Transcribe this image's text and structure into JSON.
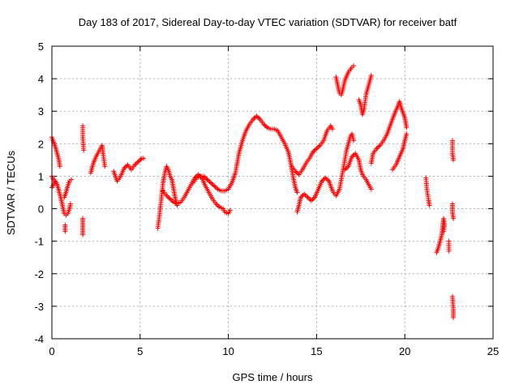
{
  "chart_data": {
    "type": "scatter",
    "title": "Day 183 of 2017, Sidereal Day-to-day VTEC variation (SDTVAR) for receiver batf",
    "xlabel": "GPS time / hours",
    "ylabel": "SDTVAR / TECUs",
    "xlim": [
      0,
      25
    ],
    "ylim": [
      -4,
      5
    ],
    "xticks": [
      "0",
      "5",
      "10",
      "15",
      "20",
      "25"
    ],
    "yticks": [
      "-4",
      "-3",
      "-2",
      "-1",
      "0",
      "1",
      "2",
      "3",
      "4",
      "5"
    ],
    "grid": true,
    "marker": "+",
    "series": [
      {
        "name": "SDTVAR",
        "color": "#ff0000",
        "segments": [
          [
            [
              0.0,
              2.2
            ],
            [
              0.1,
              2.05
            ],
            [
              0.2,
              1.9
            ],
            [
              0.3,
              1.7
            ],
            [
              0.4,
              1.5
            ],
            [
              0.45,
              1.3
            ]
          ],
          [
            [
              0.0,
              1.0
            ],
            [
              0.1,
              0.9
            ],
            [
              0.2,
              0.8
            ],
            [
              0.3,
              0.75
            ],
            [
              0.4,
              0.55
            ],
            [
              0.5,
              0.35
            ],
            [
              0.6,
              0.1
            ],
            [
              0.7,
              -0.15
            ],
            [
              0.8,
              -0.2
            ],
            [
              0.9,
              -0.15
            ],
            [
              1.0,
              0.0
            ],
            [
              1.05,
              0.15
            ]
          ],
          [
            [
              0.0,
              0.65
            ],
            [
              0.1,
              0.75
            ],
            [
              0.2,
              0.85
            ],
            [
              0.3,
              0.75
            ]
          ],
          [
            [
              0.7,
              0.35
            ],
            [
              0.8,
              0.5
            ],
            [
              0.9,
              0.7
            ],
            [
              1.0,
              0.85
            ],
            [
              1.1,
              0.9
            ]
          ],
          [
            [
              0.75,
              -0.5
            ],
            [
              0.75,
              -0.7
            ]
          ],
          [
            [
              1.75,
              2.55
            ],
            [
              1.75,
              2.2
            ],
            [
              1.8,
              1.8
            ]
          ],
          [
            [
              1.75,
              -0.3
            ],
            [
              1.75,
              -0.55
            ],
            [
              1.75,
              -0.8
            ]
          ],
          [
            [
              2.2,
              1.1
            ],
            [
              2.35,
              1.4
            ],
            [
              2.5,
              1.6
            ],
            [
              2.7,
              1.8
            ],
            [
              2.85,
              1.95
            ],
            [
              2.9,
              1.7
            ],
            [
              3.0,
              1.3
            ]
          ],
          [
            [
              3.5,
              1.15
            ],
            [
              3.6,
              1.0
            ],
            [
              3.7,
              0.85
            ],
            [
              3.9,
              1.0
            ],
            [
              4.1,
              1.25
            ],
            [
              4.3,
              1.35
            ],
            [
              4.5,
              1.2
            ],
            [
              4.7,
              1.35
            ],
            [
              4.9,
              1.45
            ],
            [
              5.1,
              1.55
            ],
            [
              5.2,
              1.55
            ]
          ],
          [
            [
              6.0,
              -0.6
            ],
            [
              6.1,
              -0.2
            ],
            [
              6.2,
              0.3
            ],
            [
              6.3,
              0.8
            ],
            [
              6.4,
              1.1
            ],
            [
              6.5,
              1.3
            ],
            [
              6.6,
              1.2
            ],
            [
              6.7,
              1.0
            ],
            [
              6.8,
              0.9
            ],
            [
              6.9,
              0.6
            ],
            [
              7.0,
              0.3
            ],
            [
              7.1,
              0.1
            ]
          ],
          [
            [
              6.3,
              0.55
            ],
            [
              6.5,
              0.4
            ],
            [
              6.7,
              0.3
            ],
            [
              6.9,
              0.2
            ],
            [
              7.1,
              0.15
            ],
            [
              7.3,
              0.2
            ],
            [
              7.5,
              0.35
            ],
            [
              7.7,
              0.55
            ],
            [
              7.9,
              0.75
            ],
            [
              8.1,
              0.95
            ],
            [
              8.3,
              1.05
            ],
            [
              8.5,
              0.95
            ],
            [
              8.7,
              0.7
            ],
            [
              8.9,
              0.5
            ],
            [
              9.1,
              0.3
            ],
            [
              9.3,
              0.15
            ],
            [
              9.5,
              0.05
            ],
            [
              9.7,
              0.0
            ],
            [
              9.8,
              -0.1
            ],
            [
              10.0,
              -0.15
            ],
            [
              10.1,
              -0.05
            ]
          ],
          [
            [
              8.0,
              0.8
            ],
            [
              8.2,
              0.95
            ],
            [
              8.4,
              1.0
            ],
            [
              8.6,
              1.0
            ],
            [
              8.8,
              0.9
            ],
            [
              9.0,
              0.8
            ],
            [
              9.2,
              0.7
            ],
            [
              9.4,
              0.6
            ],
            [
              9.6,
              0.55
            ],
            [
              9.8,
              0.55
            ],
            [
              10.0,
              0.6
            ],
            [
              10.2,
              0.8
            ],
            [
              10.4,
              1.1
            ],
            [
              10.6,
              1.7
            ],
            [
              10.8,
              2.1
            ],
            [
              11.0,
              2.4
            ],
            [
              11.2,
              2.6
            ],
            [
              11.4,
              2.75
            ],
            [
              11.6,
              2.85
            ],
            [
              11.8,
              2.75
            ],
            [
              12.0,
              2.6
            ],
            [
              12.2,
              2.5
            ],
            [
              12.4,
              2.45
            ],
            [
              12.6,
              2.45
            ],
            [
              12.8,
              2.4
            ],
            [
              13.0,
              2.2
            ],
            [
              13.2,
              2.0
            ],
            [
              13.4,
              1.75
            ],
            [
              13.5,
              1.5
            ],
            [
              13.6,
              1.2
            ],
            [
              13.7,
              0.9
            ],
            [
              13.8,
              0.65
            ],
            [
              13.9,
              0.5
            ]
          ],
          [
            [
              13.9,
              -0.1
            ],
            [
              14.0,
              0.1
            ],
            [
              14.1,
              0.35
            ],
            [
              14.3,
              0.45
            ],
            [
              14.5,
              0.35
            ],
            [
              14.7,
              0.25
            ],
            [
              14.9,
              0.35
            ],
            [
              15.1,
              0.6
            ],
            [
              15.3,
              0.85
            ],
            [
              15.5,
              0.95
            ],
            [
              15.7,
              0.85
            ],
            [
              15.9,
              0.55
            ],
            [
              16.1,
              0.4
            ],
            [
              16.3,
              0.6
            ],
            [
              16.5,
              1.2
            ],
            [
              16.7,
              1.8
            ],
            [
              16.9,
              2.2
            ],
            [
              17.0,
              2.3
            ],
            [
              17.1,
              2.1
            ]
          ],
          [
            [
              13.6,
              1.3
            ],
            [
              13.8,
              1.15
            ],
            [
              14.0,
              1.05
            ],
            [
              14.2,
              1.2
            ],
            [
              14.4,
              1.4
            ],
            [
              14.6,
              1.55
            ],
            [
              14.8,
              1.75
            ],
            [
              15.0,
              1.85
            ],
            [
              15.2,
              1.95
            ],
            [
              15.4,
              2.1
            ],
            [
              15.6,
              2.4
            ],
            [
              15.8,
              2.55
            ],
            [
              15.9,
              2.45
            ]
          ],
          [
            [
              16.1,
              4.05
            ],
            [
              16.2,
              3.8
            ],
            [
              16.3,
              3.55
            ],
            [
              16.4,
              3.5
            ],
            [
              16.5,
              3.7
            ],
            [
              16.6,
              3.95
            ],
            [
              16.8,
              4.2
            ],
            [
              17.0,
              4.35
            ],
            [
              17.1,
              4.4
            ]
          ],
          [
            [
              16.6,
              1.2
            ],
            [
              16.8,
              1.3
            ],
            [
              17.0,
              1.6
            ],
            [
              17.2,
              1.7
            ],
            [
              17.4,
              1.5
            ],
            [
              17.5,
              1.2
            ],
            [
              17.6,
              1.05
            ],
            [
              17.8,
              0.9
            ],
            [
              18.0,
              0.7
            ],
            [
              18.1,
              0.6
            ]
          ],
          [
            [
              17.4,
              3.35
            ],
            [
              17.5,
              3.2
            ],
            [
              17.6,
              2.9
            ],
            [
              17.7,
              3.1
            ],
            [
              17.8,
              3.5
            ],
            [
              18.0,
              3.9
            ],
            [
              18.1,
              4.1
            ]
          ],
          [
            [
              18.1,
              1.4
            ],
            [
              18.2,
              1.7
            ],
            [
              18.4,
              1.85
            ],
            [
              18.6,
              1.95
            ],
            [
              18.8,
              2.1
            ],
            [
              19.0,
              2.3
            ],
            [
              19.2,
              2.6
            ],
            [
              19.4,
              2.9
            ],
            [
              19.6,
              3.15
            ],
            [
              19.7,
              3.3
            ],
            [
              19.8,
              3.1
            ],
            [
              20.0,
              2.8
            ],
            [
              20.1,
              2.5
            ]
          ],
          [
            [
              19.3,
              1.2
            ],
            [
              19.5,
              1.35
            ],
            [
              19.7,
              1.6
            ],
            [
              19.9,
              1.85
            ],
            [
              20.0,
              2.1
            ],
            [
              20.1,
              2.3
            ]
          ],
          [
            [
              21.2,
              0.95
            ],
            [
              21.25,
              0.6
            ],
            [
              21.35,
              0.25
            ],
            [
              21.4,
              0.1
            ]
          ],
          [
            [
              21.8,
              -1.35
            ],
            [
              21.9,
              -1.2
            ],
            [
              22.0,
              -1.0
            ],
            [
              22.1,
              -0.8
            ],
            [
              22.15,
              -0.55
            ],
            [
              22.2,
              -0.3
            ],
            [
              22.25,
              -0.5
            ],
            [
              22.2,
              -0.7
            ]
          ],
          [
            [
              22.5,
              -1.0
            ],
            [
              22.5,
              -1.3
            ]
          ],
          [
            [
              22.7,
              2.1
            ],
            [
              22.7,
              1.7
            ],
            [
              22.75,
              1.5
            ]
          ],
          [
            [
              22.7,
              0.15
            ],
            [
              22.7,
              -0.1
            ],
            [
              22.75,
              -0.3
            ]
          ],
          [
            [
              22.7,
              -2.7
            ],
            [
              22.75,
              -3.1
            ],
            [
              22.75,
              -3.35
            ]
          ]
        ]
      }
    ]
  }
}
